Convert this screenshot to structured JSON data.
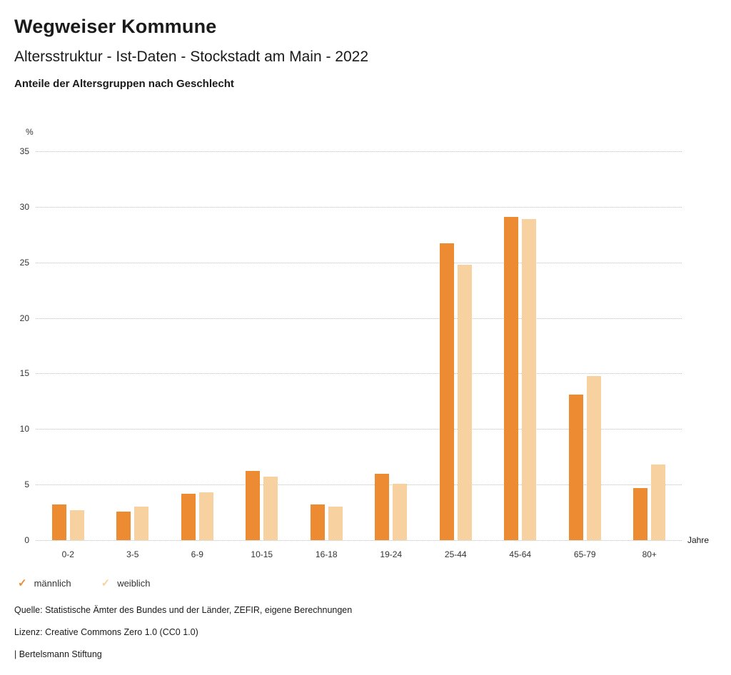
{
  "header": {
    "title": "Wegweiser Kommune",
    "subtitle": "Altersstruktur - Ist-Daten - Stockstadt am Main - 2022",
    "subsubtitle": "Anteile der Altersgruppen nach Geschlecht"
  },
  "chart_data": {
    "type": "bar",
    "title": "Anteile der Altersgruppen nach Geschlecht",
    "categories": [
      "0-2",
      "3-5",
      "6-9",
      "10-15",
      "16-18",
      "19-24",
      "25-44",
      "45-64",
      "65-79",
      "80+"
    ],
    "series": [
      {
        "name": "männlich",
        "color": "#ED8B33",
        "values": [
          3.2,
          2.6,
          4.2,
          6.2,
          3.2,
          6.0,
          26.7,
          29.1,
          13.1,
          4.7
        ]
      },
      {
        "name": "weiblich",
        "color": "#F7D2A0",
        "values": [
          2.7,
          3.0,
          4.3,
          5.7,
          3.0,
          5.1,
          24.8,
          28.9,
          14.8,
          6.8
        ]
      }
    ],
    "ylabel": "%",
    "xlabel": "Jahre",
    "ylim": [
      0,
      35
    ],
    "ytick_step": 5,
    "grid": true,
    "legend_position": "bottom"
  },
  "footer": {
    "source": "Quelle: Statistische Ämter des Bundes und der Länder, ZEFIR, eigene Berechnungen",
    "license": "Lizenz: Creative Commons Zero 1.0 (CC0 1.0)",
    "attribution": "| Bertelsmann Stiftung"
  }
}
